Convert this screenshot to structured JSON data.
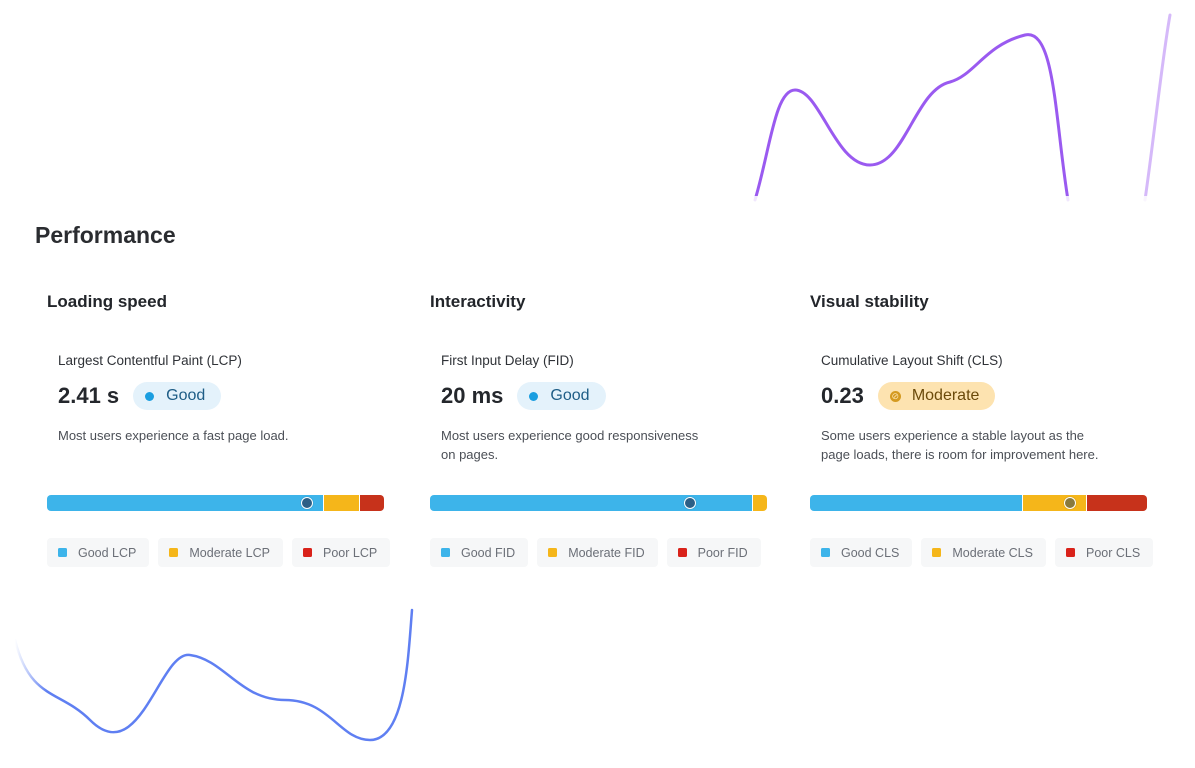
{
  "page": {
    "title": "Performance"
  },
  "colors": {
    "good": "#3db4ea",
    "moderate": "#f5b61a",
    "poor": "#c7321b",
    "accent_purple": "#9a5af0",
    "accent_blue": "#5f7ff2"
  },
  "cards": [
    {
      "title": "Loading speed",
      "metric_name": "Largest Contentful Paint (LCP)",
      "value": "2.41 s",
      "status": "Good",
      "status_kind": "good",
      "description_lines": [
        "Most users experience a fast page load."
      ],
      "distribution": {
        "good": 0.82,
        "moderate": 0.105,
        "poor": 0.075
      },
      "marker": 0.77,
      "legend": [
        "Good LCP",
        "Moderate LCP",
        "Poor LCP"
      ]
    },
    {
      "title": "Interactivity",
      "metric_name": "First Input Delay (FID)",
      "value": "20 ms",
      "status": "Good",
      "status_kind": "good",
      "description_lines": [
        "Most users experience good responsiveness",
        "on pages."
      ],
      "distribution": {
        "good": 0.955,
        "moderate": 0.045,
        "poor": 0.0
      },
      "marker": 0.77,
      "legend": [
        "Good FID",
        "Moderate FID",
        "Poor FID"
      ]
    },
    {
      "title": "Visual stability",
      "metric_name": "Cumulative Layout Shift (CLS)",
      "value": "0.23",
      "status": "Moderate",
      "status_kind": "moderate",
      "description_lines": [
        "Some users experience a stable layout as the",
        "page loads, there is room for improvement here."
      ],
      "distribution": {
        "good": 0.63,
        "moderate": 0.19,
        "poor": 0.18
      },
      "marker": 0.77,
      "legend": [
        "Good CLS",
        "Moderate CLS",
        "Poor CLS"
      ]
    }
  ]
}
